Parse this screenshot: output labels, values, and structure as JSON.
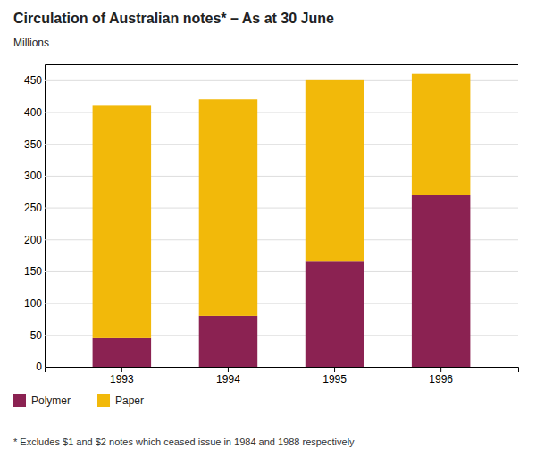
{
  "chart_data": {
    "type": "bar",
    "stacked": true,
    "title": "Circulation of Australian notes* – As at 30 June",
    "y_label": "Millions",
    "annotations": [
      "* Excludes $1 and $2 notes which ceased issue in 1984 and 1988 respectively"
    ],
    "categories": [
      "1993",
      "1994",
      "1995",
      "1996"
    ],
    "series": [
      {
        "name": "Polymer",
        "color": "#8B2252",
        "values": [
          45,
          80,
          165,
          270
        ]
      },
      {
        "name": "Paper",
        "color": "#F2B90A",
        "values": [
          365,
          340,
          285,
          190
        ]
      }
    ],
    "ylim": [
      0,
      475
    ],
    "yticks": [
      0,
      50,
      100,
      150,
      200,
      250,
      300,
      350,
      400,
      450
    ],
    "grid": true,
    "legend": "bottom"
  }
}
